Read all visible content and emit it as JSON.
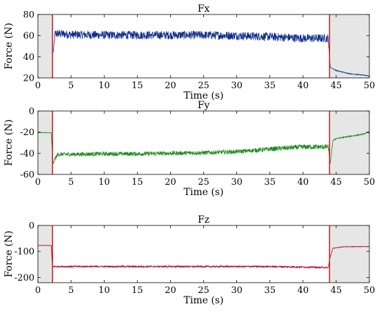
{
  "figure": {
    "panels_count": 3
  },
  "chart_data": [
    {
      "type": "line",
      "title": "Fx",
      "xlabel": "Time (s)",
      "ylabel": "Force (N)",
      "xlim": [
        0,
        50
      ],
      "ylim": [
        20,
        80
      ],
      "x_ticks": [
        0,
        5,
        10,
        15,
        20,
        25,
        30,
        35,
        40,
        45,
        50
      ],
      "y_ticks": [
        20,
        40,
        60,
        80
      ],
      "grid": false,
      "series": [
        {
          "color": "#0a2a8c",
          "x": [
            2.3,
            2.6,
            5,
            10,
            15,
            20,
            25,
            30,
            35,
            40,
            43.8,
            44.1,
            45,
            47,
            50
          ],
          "y": [
            44,
            62,
            61,
            60.5,
            60.5,
            60.5,
            60.5,
            60,
            59,
            57.5,
            57.5,
            30,
            27,
            24,
            22
          ],
          "noise_amplitude": [
            0,
            4,
            4,
            4,
            4,
            4,
            4,
            4,
            4,
            4,
            4,
            0,
            0.4,
            0.3,
            0.3
          ]
        }
      ],
      "markers": {
        "vlines": [
          2.2,
          44.0
        ],
        "color": "#e00000"
      },
      "shaded_regions": [
        [
          0,
          2.2
        ],
        [
          44.0,
          50
        ]
      ],
      "shade_color": "#e6e6e6"
    },
    {
      "type": "line",
      "title": "Fy",
      "xlabel": "Time (s)",
      "ylabel": "Force (N)",
      "xlim": [
        0,
        50
      ],
      "ylim": [
        -60,
        0
      ],
      "x_ticks": [
        0,
        5,
        10,
        15,
        20,
        25,
        30,
        35,
        40,
        45,
        50
      ],
      "y_ticks": [
        -60,
        -40,
        -20,
        0
      ],
      "grid": false,
      "series": [
        {
          "color": "#1a8a1a",
          "x": [
            0,
            2.0,
            2.3,
            2.6,
            3,
            5,
            10,
            15,
            20,
            25,
            30,
            35,
            40,
            43.8,
            44.1,
            44.5,
            45,
            47,
            49,
            50
          ],
          "y": [
            -20.5,
            -20.5,
            -50,
            -45,
            -41,
            -41,
            -40.5,
            -40.5,
            -40,
            -39.5,
            -38.5,
            -36,
            -34,
            -34,
            -50,
            -28,
            -26,
            -24,
            -22,
            -20
          ],
          "noise_amplitude": [
            0.2,
            0.2,
            0,
            2,
            2,
            2,
            2,
            2,
            2,
            2,
            2,
            2.2,
            2.4,
            2.4,
            0,
            0.5,
            0.5,
            0.5,
            0.5,
            0.5
          ]
        }
      ],
      "markers": {
        "vlines": [
          2.2,
          44.0
        ],
        "color": "#e00000"
      },
      "shaded_regions": [
        [
          0,
          2.2
        ],
        [
          44.0,
          50
        ]
      ],
      "shade_color": "#e6e6e6"
    },
    {
      "type": "line",
      "title": "Fz",
      "xlabel": "Time (s)",
      "ylabel": "Force (N)",
      "xlim": [
        0,
        50
      ],
      "ylim": [
        -220,
        0
      ],
      "x_ticks": [
        0,
        5,
        10,
        15,
        20,
        25,
        30,
        35,
        40,
        45,
        50
      ],
      "y_ticks": [
        -200,
        -100,
        0
      ],
      "grid": false,
      "series": [
        {
          "color": "#b00028",
          "x": [
            0,
            2.0,
            2.2,
            2.4,
            5,
            10,
            15,
            20,
            25,
            30,
            35,
            40,
            43.8,
            44.1,
            44.5,
            46,
            50
          ],
          "y": [
            -77,
            -77,
            -160,
            -158,
            -158,
            -158,
            -158,
            -158,
            -158,
            -158,
            -158,
            -160,
            -162,
            -120,
            -88,
            -82,
            -81
          ],
          "noise_amplitude": [
            0.5,
            0.5,
            0,
            3,
            3,
            3,
            3,
            3,
            3,
            3,
            3,
            3,
            3,
            0,
            1,
            1,
            1
          ]
        }
      ],
      "markers": {
        "vlines": [
          2.2,
          44.0
        ],
        "color": "#e00000"
      },
      "shaded_regions": [
        [
          0,
          2.2
        ],
        [
          44.0,
          50
        ]
      ],
      "shade_color": "#e6e6e6"
    }
  ]
}
